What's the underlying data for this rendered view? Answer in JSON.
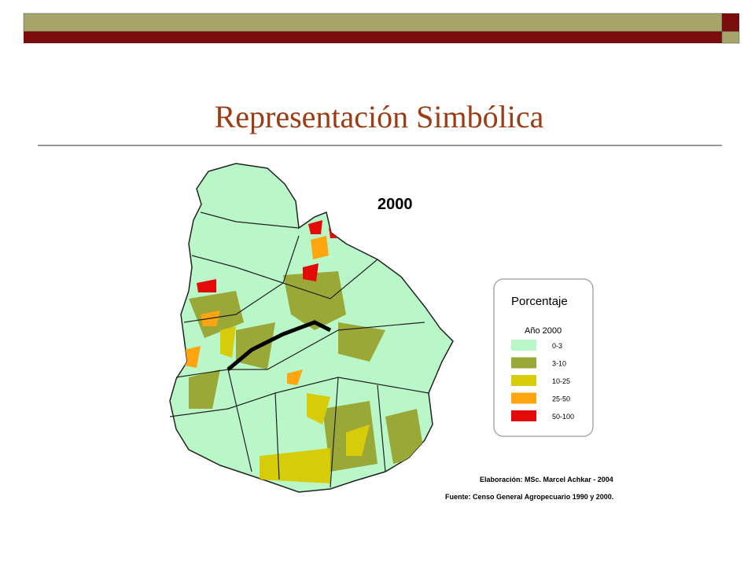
{
  "title": "Representación Simbólica",
  "map": {
    "year_label": "2000",
    "legend": {
      "title": "Porcentaje",
      "subtitle": "Año 2000",
      "items": [
        {
          "label": "0-3",
          "color": "#b9f7c9"
        },
        {
          "label": "3-10",
          "color": "#99a837"
        },
        {
          "label": "10-25",
          "color": "#d6cc0a"
        },
        {
          "label": "25-50",
          "color": "#ffa510"
        },
        {
          "label": "50-100",
          "color": "#e30a0a"
        }
      ]
    },
    "credits": [
      "Elaboración: MSc. Marcel Achkar - 2004",
      "Fuente: Censo General Agropecuario 1990 y 2000."
    ]
  }
}
